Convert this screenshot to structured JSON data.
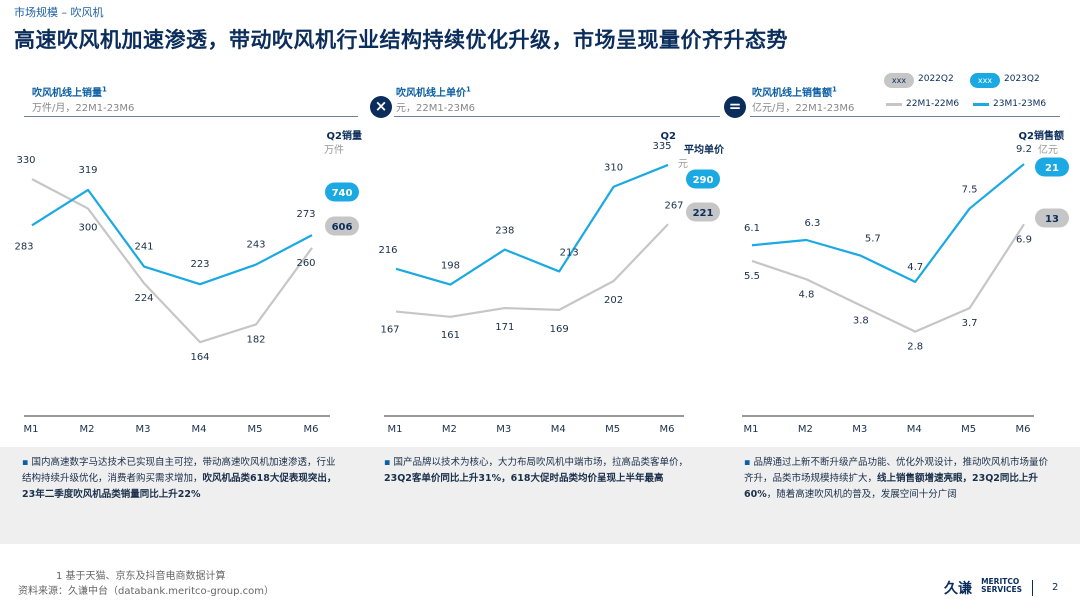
{
  "breadcrumb": "市场规模 – 吹风机",
  "page_title": "高速吹风机加速渗透，带动吹风机行业结构持续优化升级，市场呈现量价齐升态势",
  "operators": {
    "multiply": "×",
    "equals": "="
  },
  "legend": {
    "pill_placeholder": "xxx",
    "pill_2022": "2022Q2",
    "pill_2023": "2023Q2",
    "line_prev": "22M1-22M6",
    "line_curr": "23M1-23M6"
  },
  "colors": {
    "curr": "#1aa9e3",
    "prev": "#c6c6c6",
    "navy": "#0b2d5b"
  },
  "chart_data": [
    {
      "type": "line",
      "title": "吹风机线上销量",
      "footnote_mark": "1",
      "subtitle": "万件/月，22M1-23M6",
      "q2_label": "Q2销量",
      "q2_unit": "万件",
      "categories": [
        "M1",
        "M2",
        "M3",
        "M4",
        "M5",
        "M6"
      ],
      "series": [
        {
          "name": "22M1-22M6",
          "values": [
            330,
            300,
            224,
            164,
            182,
            260
          ]
        },
        {
          "name": "23M1-23M6",
          "values": [
            283,
            319,
            241,
            223,
            243,
            273
          ]
        }
      ],
      "q2_2023": "740",
      "q2_2022": "606",
      "ylim": [
        100,
        380
      ]
    },
    {
      "type": "line",
      "title": "吹风机线上单价",
      "footnote_mark": "1",
      "subtitle": "元，22M1-23M6",
      "q2_label": "Q2平均单价",
      "q2_unit": "元",
      "categories": [
        "M1",
        "M2",
        "M3",
        "M4",
        "M5",
        "M6"
      ],
      "series": [
        {
          "name": "22M1-22M6",
          "values": [
            167,
            161,
            171,
            169,
            202,
            267
          ]
        },
        {
          "name": "23M1-23M6",
          "values": [
            216,
            198,
            238,
            213,
            310,
            335
          ]
        }
      ],
      "q2_2023": "290",
      "q2_2022": "221",
      "ylim": [
        60,
        375
      ]
    },
    {
      "type": "line",
      "title": "吹风机线上销售额",
      "footnote_mark": "1",
      "subtitle": "亿元/月，22M1-23M6",
      "q2_label": "Q2销售额",
      "q2_unit": "亿元",
      "categories": [
        "M1",
        "M2",
        "M3",
        "M4",
        "M5",
        "M6"
      ],
      "series": [
        {
          "name": "22M1-22M6",
          "values": [
            5.5,
            4.8,
            3.8,
            2.8,
            3.7,
            6.9
          ]
        },
        {
          "name": "23M1-23M6",
          "values": [
            6.1,
            6.3,
            5.7,
            4.7,
            7.5,
            9.2
          ]
        }
      ],
      "q2_2023": "21",
      "q2_2022": "13",
      "ylim": [
        0,
        10.5
      ]
    }
  ],
  "bullets": [
    {
      "plain": "国内高速数字马达技术已实现自主可控，带动高速吹风机加速渗透，行业结构持续升级优化，消费者购买需求增加，",
      "bold": "吹风机品类618大促表现突出，23年二季度吹风机品类销量同比上升22%",
      "tail": ""
    },
    {
      "plain": "国产品牌以技术为核心，大力布局吹风机中端市场，拉高品类客单价，",
      "bold": "23Q2客单价同比上升31%，618大促时品类均价呈现上半年最高",
      "tail": ""
    },
    {
      "plain": "品牌通过上新不断升级产品功能、优化外观设计，推动吹风机市场量价齐升，品类市场规模持续扩大，",
      "bold": "线上销售额增速亮眼，23Q2同比上升60%",
      "tail": "，随着高速吹风机的普及，发展空间十分广阔"
    }
  ],
  "bullet_marker": "▪",
  "footnote": "1  基于天猫、京东及抖音电商数据计算",
  "source": "资料来源：久谦中台（databank.meritco-group.com）",
  "logo": {
    "cn": "久谦",
    "en1": "MERITCO",
    "en2": "SERVICES"
  },
  "page_number": "2"
}
